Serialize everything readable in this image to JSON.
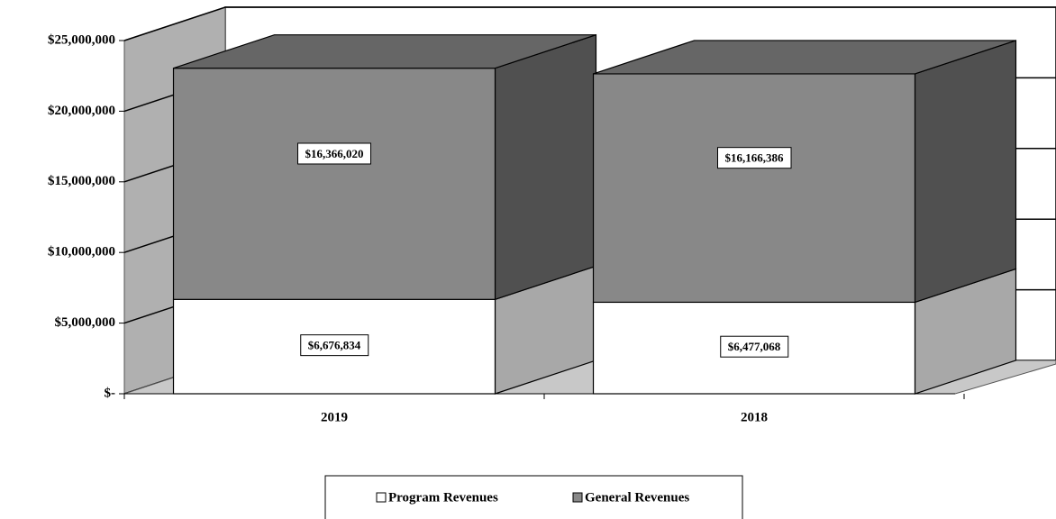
{
  "chart_data": {
    "type": "bar3d-stacked",
    "categories": [
      "2019",
      "2018"
    ],
    "series": [
      {
        "name": "Program Revenues",
        "color": "#ffffff",
        "side_color": "#a8a8a8",
        "values": [
          6676834,
          6477068
        ],
        "value_labels": [
          "$6,676,834",
          "$6,477,068"
        ]
      },
      {
        "name": "General Revenues",
        "color": "#888888",
        "side_color": "#505050",
        "top_color": "#666666",
        "values": [
          16366020,
          16166386
        ],
        "value_labels": [
          "$16,366,020",
          "$16,166,386"
        ]
      }
    ],
    "ylim": [
      0,
      25000000
    ],
    "yticks": [
      {
        "value": 0,
        "label": "$-"
      },
      {
        "value": 5000000,
        "label": "$5,000,000"
      },
      {
        "value": 10000000,
        "label": "$10,000,000"
      },
      {
        "value": 15000000,
        "label": "$15,000,000"
      },
      {
        "value": 20000000,
        "label": "$20,000,000"
      },
      {
        "value": 25000000,
        "label": "$25,000,000"
      }
    ],
    "grid": true,
    "legend": "bottom"
  }
}
